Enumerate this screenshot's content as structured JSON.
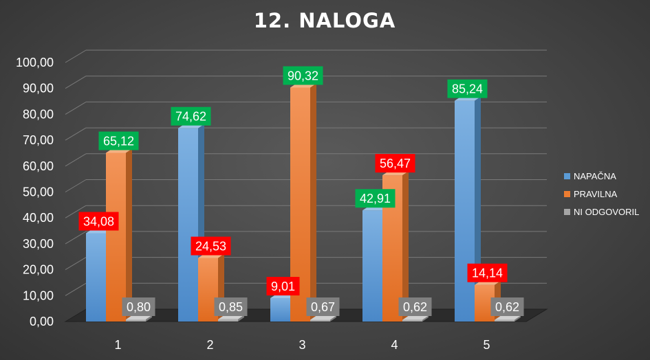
{
  "chart_data": {
    "type": "bar",
    "title": "12. NALOGA",
    "categories": [
      "1",
      "2",
      "3",
      "4",
      "5"
    ],
    "ylim": [
      0,
      100
    ],
    "yticks": [
      "0,00",
      "10,00",
      "20,00",
      "30,00",
      "40,00",
      "50,00",
      "60,00",
      "70,00",
      "80,00",
      "90,00",
      "100,00"
    ],
    "grid": true,
    "legend_position": "right",
    "series": [
      {
        "name": "NAPAČNA",
        "color": "#5b9bd5",
        "values": [
          34.08,
          74.62,
          9.01,
          42.91,
          85.24
        ],
        "labels": [
          "34,08",
          "74,62",
          "9,01",
          "42,91",
          "85,24"
        ],
        "label_colors": [
          "#ff0000",
          "#00b050",
          "#ff0000",
          "#00b050",
          "#00b050"
        ]
      },
      {
        "name": "PRAVILNA",
        "color": "#ed7d31",
        "values": [
          65.12,
          24.53,
          90.32,
          56.47,
          14.14
        ],
        "labels": [
          "65,12",
          "24,53",
          "90,32",
          "56,47",
          "14,14"
        ],
        "label_colors": [
          "#00b050",
          "#ff0000",
          "#00b050",
          "#ff0000",
          "#ff0000"
        ]
      },
      {
        "name": "NI ODGOVORIL",
        "color": "#a5a5a5",
        "values": [
          0.8,
          0.85,
          0.67,
          0.62,
          0.62
        ],
        "labels": [
          "0,80",
          "0,85",
          "0,67",
          "0,62",
          "0,62"
        ],
        "label_colors": [
          "#7f7f7f",
          "#7f7f7f",
          "#7f7f7f",
          "#7f7f7f",
          "#7f7f7f"
        ]
      }
    ]
  }
}
